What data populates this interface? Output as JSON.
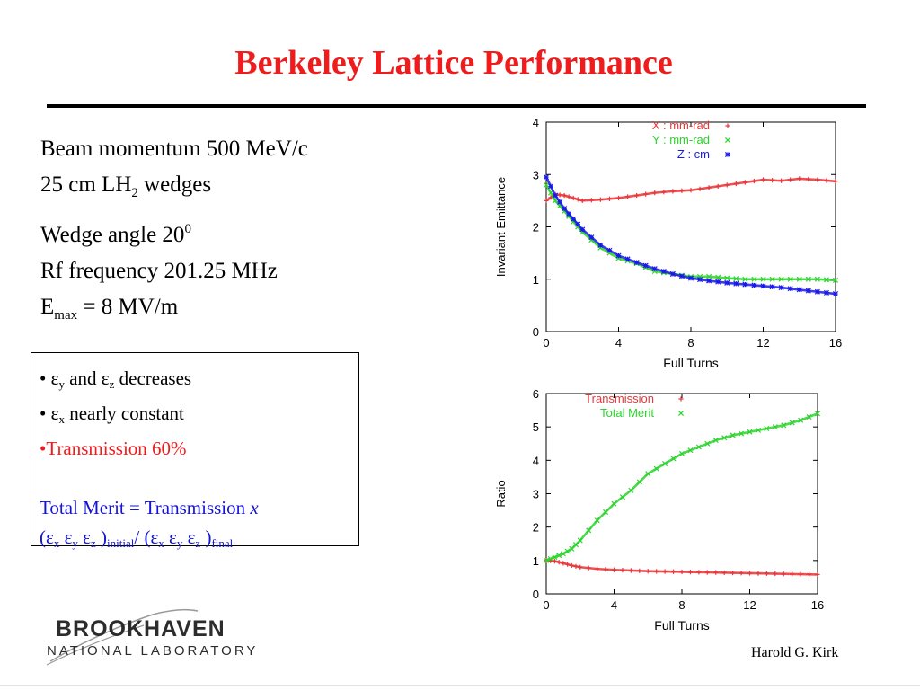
{
  "title": "Berkeley Lattice Performance",
  "parameters": {
    "momentum": "Beam momentum 500 MeV/c",
    "wedges_pre": "25 cm LH",
    "wedges_sub": "2",
    "wedges_post": " wedges",
    "angle_pre": "Wedge angle 20",
    "angle_sup": "0",
    "rf": "Rf frequency 201.25 MHz",
    "emax_pre": "E",
    "emax_sub": "max",
    "emax_post": " = 8 MV/m"
  },
  "summary": {
    "b1_bullet": "• ",
    "eps": "ε",
    "b1_y": "y",
    "b1_and": "  and ",
    "b1_z": "z",
    "b1_rest": " decreases",
    "b2_bullet": "• ",
    "b2_x": "x",
    "b2_rest": "  nearly constant",
    "b3": "•Transmission 60%",
    "merit": "Total Merit = Transmission ",
    "merit_x": "x",
    "open": "(",
    "x": "x",
    "y": "y",
    "z": "z",
    "close": " )",
    "initial": "initial",
    "slash": "/ (",
    "final": "final"
  },
  "footer": {
    "logo_main": "BROOKHAVEN",
    "logo_sub": "NATIONAL LABORATORY",
    "author": "Harold G. Kirk"
  },
  "chart_data": [
    {
      "type": "scatter",
      "xlabel": "Full Turns",
      "ylabel": "Invariant Emittance",
      "xlim": [
        0,
        16
      ],
      "ylim": [
        0,
        4
      ],
      "xticks": [
        0,
        4,
        8,
        12,
        16
      ],
      "yticks": [
        0,
        1,
        2,
        3,
        4
      ],
      "legend_position": "top-right",
      "series": [
        {
          "name": "X : mm-rad",
          "marker": "+",
          "color": "#e8363a",
          "x": [
            0,
            0.5,
            1,
            1.5,
            2,
            3,
            4,
            5,
            6,
            7,
            8,
            9,
            10,
            11,
            12,
            13,
            14,
            15,
            16
          ],
          "y": [
            2.5,
            2.62,
            2.6,
            2.55,
            2.5,
            2.52,
            2.55,
            2.6,
            2.65,
            2.68,
            2.7,
            2.75,
            2.8,
            2.85,
            2.9,
            2.88,
            2.92,
            2.9,
            2.87
          ]
        },
        {
          "name": "Y : mm-rad",
          "marker": "×",
          "color": "#2bd42b",
          "x": [
            0,
            0.5,
            1,
            1.5,
            2,
            3,
            4,
            5,
            6,
            7,
            8,
            9,
            10,
            11,
            12,
            13,
            14,
            15,
            16
          ],
          "y": [
            2.8,
            2.5,
            2.3,
            2.1,
            1.9,
            1.6,
            1.4,
            1.3,
            1.15,
            1.1,
            1.05,
            1.05,
            1.02,
            1.0,
            1.0,
            1.0,
            1.0,
            1.0,
            0.98
          ]
        },
        {
          "name": "Z : cm",
          "marker": "*",
          "color": "#1a1ae8",
          "x": [
            0,
            0.5,
            1,
            1.5,
            2,
            3,
            4,
            5,
            6,
            7,
            8,
            9,
            10,
            11,
            12,
            13,
            14,
            15,
            16
          ],
          "y": [
            2.95,
            2.6,
            2.35,
            2.15,
            1.95,
            1.65,
            1.45,
            1.32,
            1.2,
            1.1,
            1.02,
            0.97,
            0.93,
            0.9,
            0.87,
            0.84,
            0.8,
            0.76,
            0.72
          ]
        }
      ]
    },
    {
      "type": "scatter",
      "xlabel": "Full Turns",
      "ylabel": "Ratio",
      "xlim": [
        0,
        16
      ],
      "ylim": [
        0,
        6
      ],
      "xticks": [
        0,
        4,
        8,
        12,
        16
      ],
      "yticks": [
        0,
        1,
        2,
        3,
        4,
        5,
        6
      ],
      "legend_position": "top-left",
      "series": [
        {
          "name": "Transmission",
          "marker": "+",
          "color": "#e8363a",
          "x": [
            0,
            0.5,
            1,
            1.5,
            2,
            3,
            4,
            5,
            6,
            7,
            8,
            9,
            10,
            11,
            12,
            13,
            14,
            15,
            16
          ],
          "y": [
            1.0,
            0.98,
            0.92,
            0.85,
            0.8,
            0.75,
            0.72,
            0.7,
            0.68,
            0.67,
            0.66,
            0.65,
            0.64,
            0.63,
            0.62,
            0.61,
            0.6,
            0.59,
            0.58
          ]
        },
        {
          "name": "Total Merit",
          "marker": "×",
          "color": "#2bd42b",
          "x": [
            0,
            0.5,
            1,
            1.5,
            2,
            3,
            4,
            5,
            6,
            7,
            8,
            9,
            10,
            11,
            12,
            13,
            14,
            15,
            16
          ],
          "y": [
            1.0,
            1.1,
            1.2,
            1.35,
            1.6,
            2.2,
            2.7,
            3.1,
            3.6,
            3.9,
            4.2,
            4.4,
            4.6,
            4.75,
            4.85,
            4.95,
            5.05,
            5.2,
            5.4
          ]
        }
      ]
    }
  ]
}
